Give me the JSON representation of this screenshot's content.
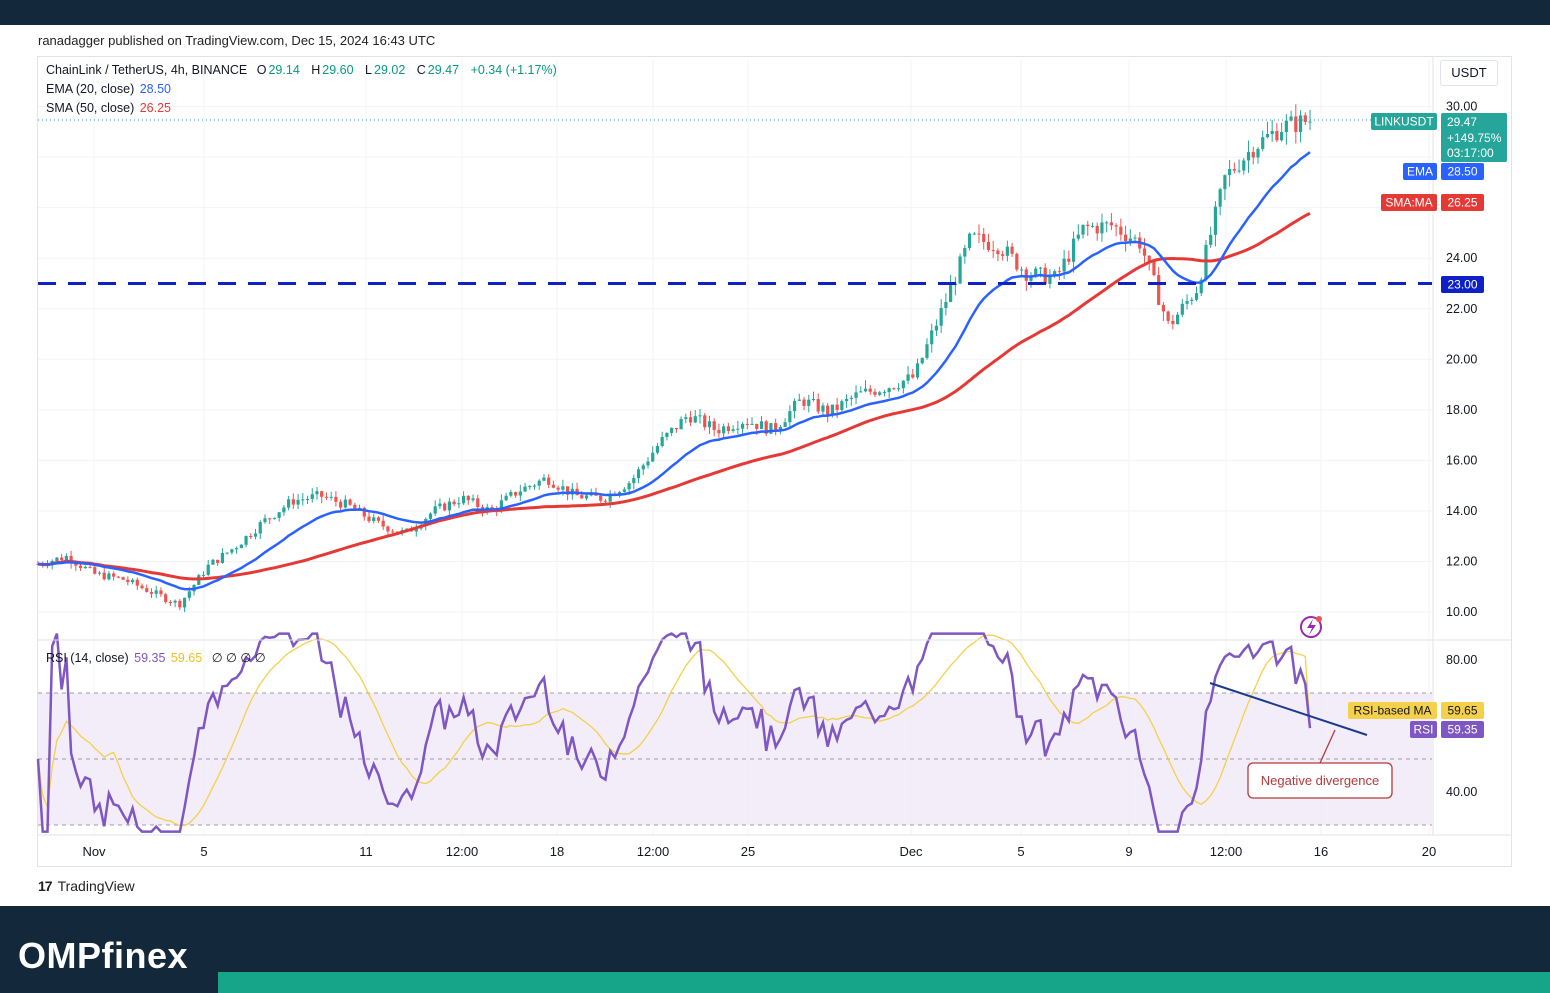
{
  "header": {
    "published": "ranadagger published on TradingView.com, Dec 15, 2024 16:43 UTC"
  },
  "legend": {
    "symbol": "ChainLink / TetherUS, 4h, BINANCE",
    "o_label": "O",
    "o": "29.14",
    "h_label": "H",
    "h": "29.60",
    "l_label": "L",
    "l": "29.02",
    "c_label": "C",
    "c": "29.47",
    "change": "+0.34 (+1.17%)",
    "ema_label": "EMA (20, close)",
    "ema_value": "28.50",
    "sma_label": "SMA (50, close)",
    "sma_value": "26.25",
    "rsi_label": "RSI (14, close)",
    "rsi_value": "59.35",
    "rsi_ma_value": "59.65",
    "rsi_extra": "∅ ∅ ∅ ∅"
  },
  "currency": "USDT",
  "tags": {
    "symbol": "LINKUSDT",
    "price": "29.47",
    "pct": "+149.75%",
    "countdown": "03:17:00",
    "ema_tag": "EMA",
    "ema": "28.50",
    "sma_tag": "SMA:MA",
    "sma": "26.25",
    "level": "23.00",
    "rsi_ma_tag": "RSI-based MA",
    "rsi_ma": "59.65",
    "rsi_tag": "RSI",
    "rsi": "59.35"
  },
  "annotation": {
    "text": "Negative divergence"
  },
  "footer": {
    "logo": "17",
    "brand": "TradingView"
  },
  "brand": {
    "name": "OMPfinex"
  },
  "colors": {
    "up": "#26a69a",
    "down": "#ef5350",
    "ema": "#2962ff",
    "sma": "#e53935",
    "level": "#0d21c7",
    "rsi": "#7e57c2",
    "rsi_ma": "#f5d04a",
    "div_line": "#1c3a8c",
    "annot": "#b33a3a"
  },
  "chart_data": [
    {
      "type": "line",
      "title": "ChainLink / TetherUS, 4h, BINANCE",
      "y_ticks": [
        10,
        12,
        14,
        16,
        18,
        20,
        22,
        24,
        30
      ],
      "y_tick_labels": [
        "10.00",
        "12.00",
        "14.00",
        "16.00",
        "18.00",
        "20.00",
        "22.00",
        "24.00",
        "30.00"
      ],
      "x_tick_labels": [
        "Nov",
        "5",
        "11",
        "12:00",
        "18",
        "12:00",
        "25",
        "Dec",
        "5",
        "9",
        "12:00",
        "16",
        "20"
      ],
      "horizontal_level": 23.0,
      "last_price": 29.47,
      "price_path": [
        [
          "Oct 31",
          11.9
        ],
        [
          "Nov 1",
          12.2
        ],
        [
          "Nov 2",
          11.5
        ],
        [
          "Nov 3",
          11.3
        ],
        [
          "Nov 4",
          10.8
        ],
        [
          "Nov 5",
          10.3
        ],
        [
          "Nov 6",
          11.8
        ],
        [
          "Nov 7",
          12.6
        ],
        [
          "Nov 8",
          13.6
        ],
        [
          "Nov 9",
          14.4
        ],
        [
          "Nov 10",
          14.6
        ],
        [
          "Nov 11",
          14.2
        ],
        [
          "Nov 12",
          13.5
        ],
        [
          "Nov 13",
          13.1
        ],
        [
          "Nov 14",
          14.0
        ],
        [
          "Nov 15",
          14.5
        ],
        [
          "Nov 16",
          14.0
        ],
        [
          "Nov 17",
          14.8
        ],
        [
          "Nov 18",
          15.3
        ],
        [
          "Nov 19",
          14.6
        ],
        [
          "Nov 20",
          14.5
        ],
        [
          "Nov 21",
          15.2
        ],
        [
          "Nov 22",
          16.7
        ],
        [
          "Nov 23",
          17.8
        ],
        [
          "Nov 24",
          17.2
        ],
        [
          "Nov 25",
          17.6
        ],
        [
          "Nov 26",
          17.2
        ],
        [
          "Nov 27",
          18.4
        ],
        [
          "Nov 28",
          17.9
        ],
        [
          "Nov 29",
          18.6
        ],
        [
          "Nov 30",
          18.9
        ],
        [
          "Dec 1",
          19.3
        ],
        [
          "Dec 2",
          22.0
        ],
        [
          "Dec 3",
          24.8
        ],
        [
          "Dec 4",
          24.5
        ],
        [
          "Dec 5",
          23.4
        ],
        [
          "Dec 6",
          23.2
        ],
        [
          "Dec 7",
          25.2
        ],
        [
          "Dec 8",
          25.3
        ],
        [
          "Dec 9",
          24.6
        ],
        [
          "Dec 10",
          21.3
        ],
        [
          "Dec 11",
          22.8
        ],
        [
          "Dec 12",
          27.2
        ],
        [
          "Dec 13",
          28.4
        ],
        [
          "Dec 14",
          29.2
        ],
        [
          "Dec 15",
          29.47
        ]
      ],
      "series": [
        {
          "name": "EMA (20, close)",
          "last": 28.5
        },
        {
          "name": "SMA (50, close)",
          "last": 26.25
        }
      ]
    },
    {
      "type": "line",
      "title": "RSI (14, close)",
      "y_ticks": [
        40,
        80
      ],
      "y_tick_labels": [
        "40.00",
        "80.00"
      ],
      "bands": [
        30,
        50,
        70
      ],
      "series": [
        {
          "name": "RSI",
          "last": 59.35
        },
        {
          "name": "RSI-based MA",
          "last": 59.65
        }
      ],
      "annotations": [
        "Negative divergence"
      ]
    }
  ]
}
